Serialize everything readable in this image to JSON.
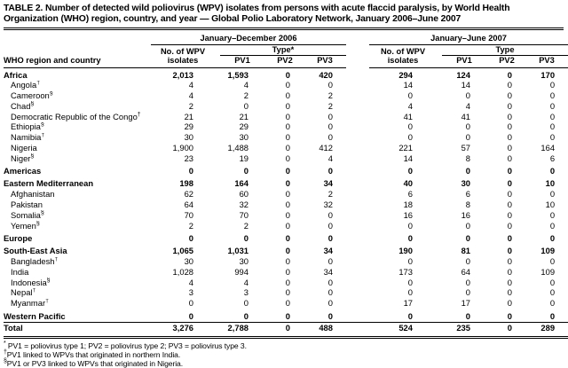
{
  "title": "TABLE 2. Number of detected wild poliovirus (WPV) isolates from persons with acute flaccid paralysis, by World Health Organization (WHO) region, country, and year — Global Polio Laboratory Network, January 2006–June 2007",
  "header": {
    "row_label": "WHO region and country",
    "groups": [
      {
        "label": "January–December 2006",
        "isolates_line1": "No. of WPV",
        "isolates_line2": "isolates",
        "type_label": "Type*",
        "subcols": [
          "PV1",
          "PV2",
          "PV3"
        ]
      },
      {
        "label": "January–June 2007",
        "isolates_line1": "No. of WPV",
        "isolates_line2": "isolates",
        "type_label": "Type",
        "subcols": [
          "PV1",
          "PV2",
          "PV3"
        ]
      }
    ]
  },
  "rows": [
    {
      "label": "Africa",
      "marker": "",
      "type": "region",
      "values": [
        "2,013",
        "1,593",
        "0",
        "420",
        "294",
        "124",
        "0",
        "170"
      ]
    },
    {
      "label": "Angola",
      "marker": "†",
      "type": "country",
      "values": [
        "4",
        "4",
        "0",
        "0",
        "14",
        "14",
        "0",
        "0"
      ]
    },
    {
      "label": "Cameroon",
      "marker": "§",
      "type": "country",
      "values": [
        "4",
        "2",
        "0",
        "2",
        "0",
        "0",
        "0",
        "0"
      ]
    },
    {
      "label": "Chad",
      "marker": "§",
      "type": "country",
      "values": [
        "2",
        "0",
        "0",
        "2",
        "4",
        "4",
        "0",
        "0"
      ]
    },
    {
      "label": "Democratic Republic of the Congo",
      "marker": "†",
      "type": "country",
      "values": [
        "21",
        "21",
        "0",
        "0",
        "41",
        "41",
        "0",
        "0"
      ]
    },
    {
      "label": "Ethiopia",
      "marker": "§",
      "type": "country",
      "values": [
        "29",
        "29",
        "0",
        "0",
        "0",
        "0",
        "0",
        "0"
      ]
    },
    {
      "label": "Namibia",
      "marker": "†",
      "type": "country",
      "values": [
        "30",
        "30",
        "0",
        "0",
        "0",
        "0",
        "0",
        "0"
      ]
    },
    {
      "label": "Nigeria",
      "marker": "",
      "type": "country",
      "values": [
        "1,900",
        "1,488",
        "0",
        "412",
        "221",
        "57",
        "0",
        "164"
      ]
    },
    {
      "label": "Niger",
      "marker": "§",
      "type": "country",
      "values": [
        "23",
        "19",
        "0",
        "4",
        "14",
        "8",
        "0",
        "6"
      ]
    },
    {
      "label": "Americas",
      "marker": "",
      "type": "region",
      "values": [
        "0",
        "0",
        "0",
        "0",
        "0",
        "0",
        "0",
        "0"
      ]
    },
    {
      "label": "Eastern Mediterranean",
      "marker": "",
      "type": "region",
      "values": [
        "198",
        "164",
        "0",
        "34",
        "40",
        "30",
        "0",
        "10"
      ]
    },
    {
      "label": "Afghanistan",
      "marker": "",
      "type": "country",
      "values": [
        "62",
        "60",
        "0",
        "2",
        "6",
        "6",
        "0",
        "0"
      ]
    },
    {
      "label": "Pakistan",
      "marker": "",
      "type": "country",
      "values": [
        "64",
        "32",
        "0",
        "32",
        "18",
        "8",
        "0",
        "10"
      ]
    },
    {
      "label": "Somalia",
      "marker": "§",
      "type": "country",
      "values": [
        "70",
        "70",
        "0",
        "0",
        "16",
        "16",
        "0",
        "0"
      ]
    },
    {
      "label": "Yemen",
      "marker": "§",
      "type": "country",
      "values": [
        "2",
        "2",
        "0",
        "0",
        "0",
        "0",
        "0",
        "0"
      ]
    },
    {
      "label": "Europe",
      "marker": "",
      "type": "region",
      "values": [
        "0",
        "0",
        "0",
        "0",
        "0",
        "0",
        "0",
        "0"
      ]
    },
    {
      "label": "South-East Asia",
      "marker": "",
      "type": "region",
      "values": [
        "1,065",
        "1,031",
        "0",
        "34",
        "190",
        "81",
        "0",
        "109"
      ]
    },
    {
      "label": "Bangladesh",
      "marker": "†",
      "type": "country",
      "values": [
        "30",
        "30",
        "0",
        "0",
        "0",
        "0",
        "0",
        "0"
      ]
    },
    {
      "label": "India",
      "marker": "",
      "type": "country",
      "values": [
        "1,028",
        "994",
        "0",
        "34",
        "173",
        "64",
        "0",
        "109"
      ]
    },
    {
      "label": "Indonesia",
      "marker": "§",
      "type": "country",
      "values": [
        "4",
        "4",
        "0",
        "0",
        "0",
        "0",
        "0",
        "0"
      ]
    },
    {
      "label": "Nepal",
      "marker": "†",
      "type": "country",
      "values": [
        "3",
        "3",
        "0",
        "0",
        "0",
        "0",
        "0",
        "0"
      ]
    },
    {
      "label": "Myanmar",
      "marker": "†",
      "type": "country",
      "values": [
        "0",
        "0",
        "0",
        "0",
        "17",
        "17",
        "0",
        "0"
      ]
    },
    {
      "label": "Western Pacific",
      "marker": "",
      "type": "region",
      "values": [
        "0",
        "0",
        "0",
        "0",
        "0",
        "0",
        "0",
        "0"
      ]
    },
    {
      "label": "Total",
      "marker": "",
      "type": "total",
      "values": [
        "3,276",
        "2,788",
        "0",
        "488",
        "524",
        "235",
        "0",
        "289"
      ]
    }
  ],
  "footnotes": [
    {
      "marker": "*",
      "text": "PV1 = poliovirus type 1; PV2 = poliovirus type 2; PV3 = poliovirus type 3."
    },
    {
      "marker": "†",
      "text": "PV1 linked to WPVs that originated in northern India."
    },
    {
      "marker": "§",
      "text": "PV1 or PV3 linked to WPVs that originated in Nigeria."
    }
  ],
  "colors": {
    "text": "#000000",
    "background": "#ffffff",
    "rule": "#000000"
  }
}
